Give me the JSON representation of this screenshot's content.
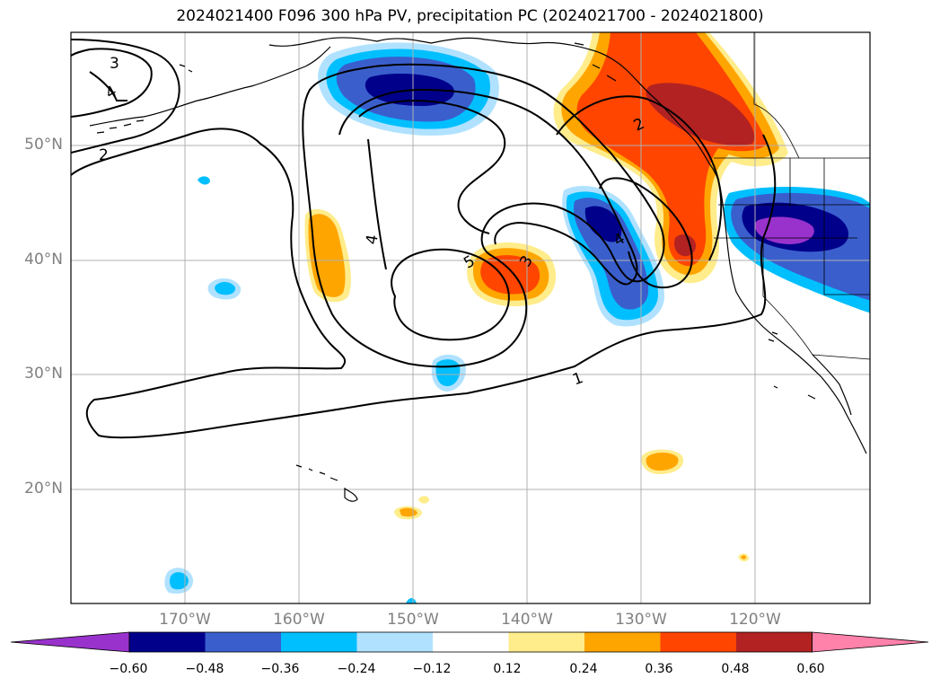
{
  "title": "2024021400 F096 300 hPa PV, precipitation PC (2024021700 - 2024021800)",
  "map": {
    "lon_range": [
      -180,
      -110
    ],
    "lat_range": [
      10,
      60
    ],
    "lat_gridlines": [
      "50°N",
      "40°N",
      "30°N",
      "20°N"
    ],
    "lon_gridlines": [
      "170°W",
      "160°W",
      "150°W",
      "140°W",
      "130°W",
      "120°W"
    ],
    "grid": true,
    "contour_labels": [
      "3",
      "4",
      "2",
      "4",
      "5",
      "3",
      "2",
      "4",
      "1"
    ]
  },
  "colorbar": {
    "ticks": [
      "−0.60",
      "−0.48",
      "−0.36",
      "−0.24",
      "−0.12",
      "0.12",
      "0.24",
      "0.36",
      "0.48",
      "0.60"
    ],
    "colors": [
      "#9932cc",
      "#00008b",
      "#3a5fcd",
      "#00bfff",
      "#b0e2ff",
      "#ffffff",
      "#ffec8b",
      "#ffa500",
      "#ff4500",
      "#b22222",
      "#ff82ab"
    ]
  }
}
